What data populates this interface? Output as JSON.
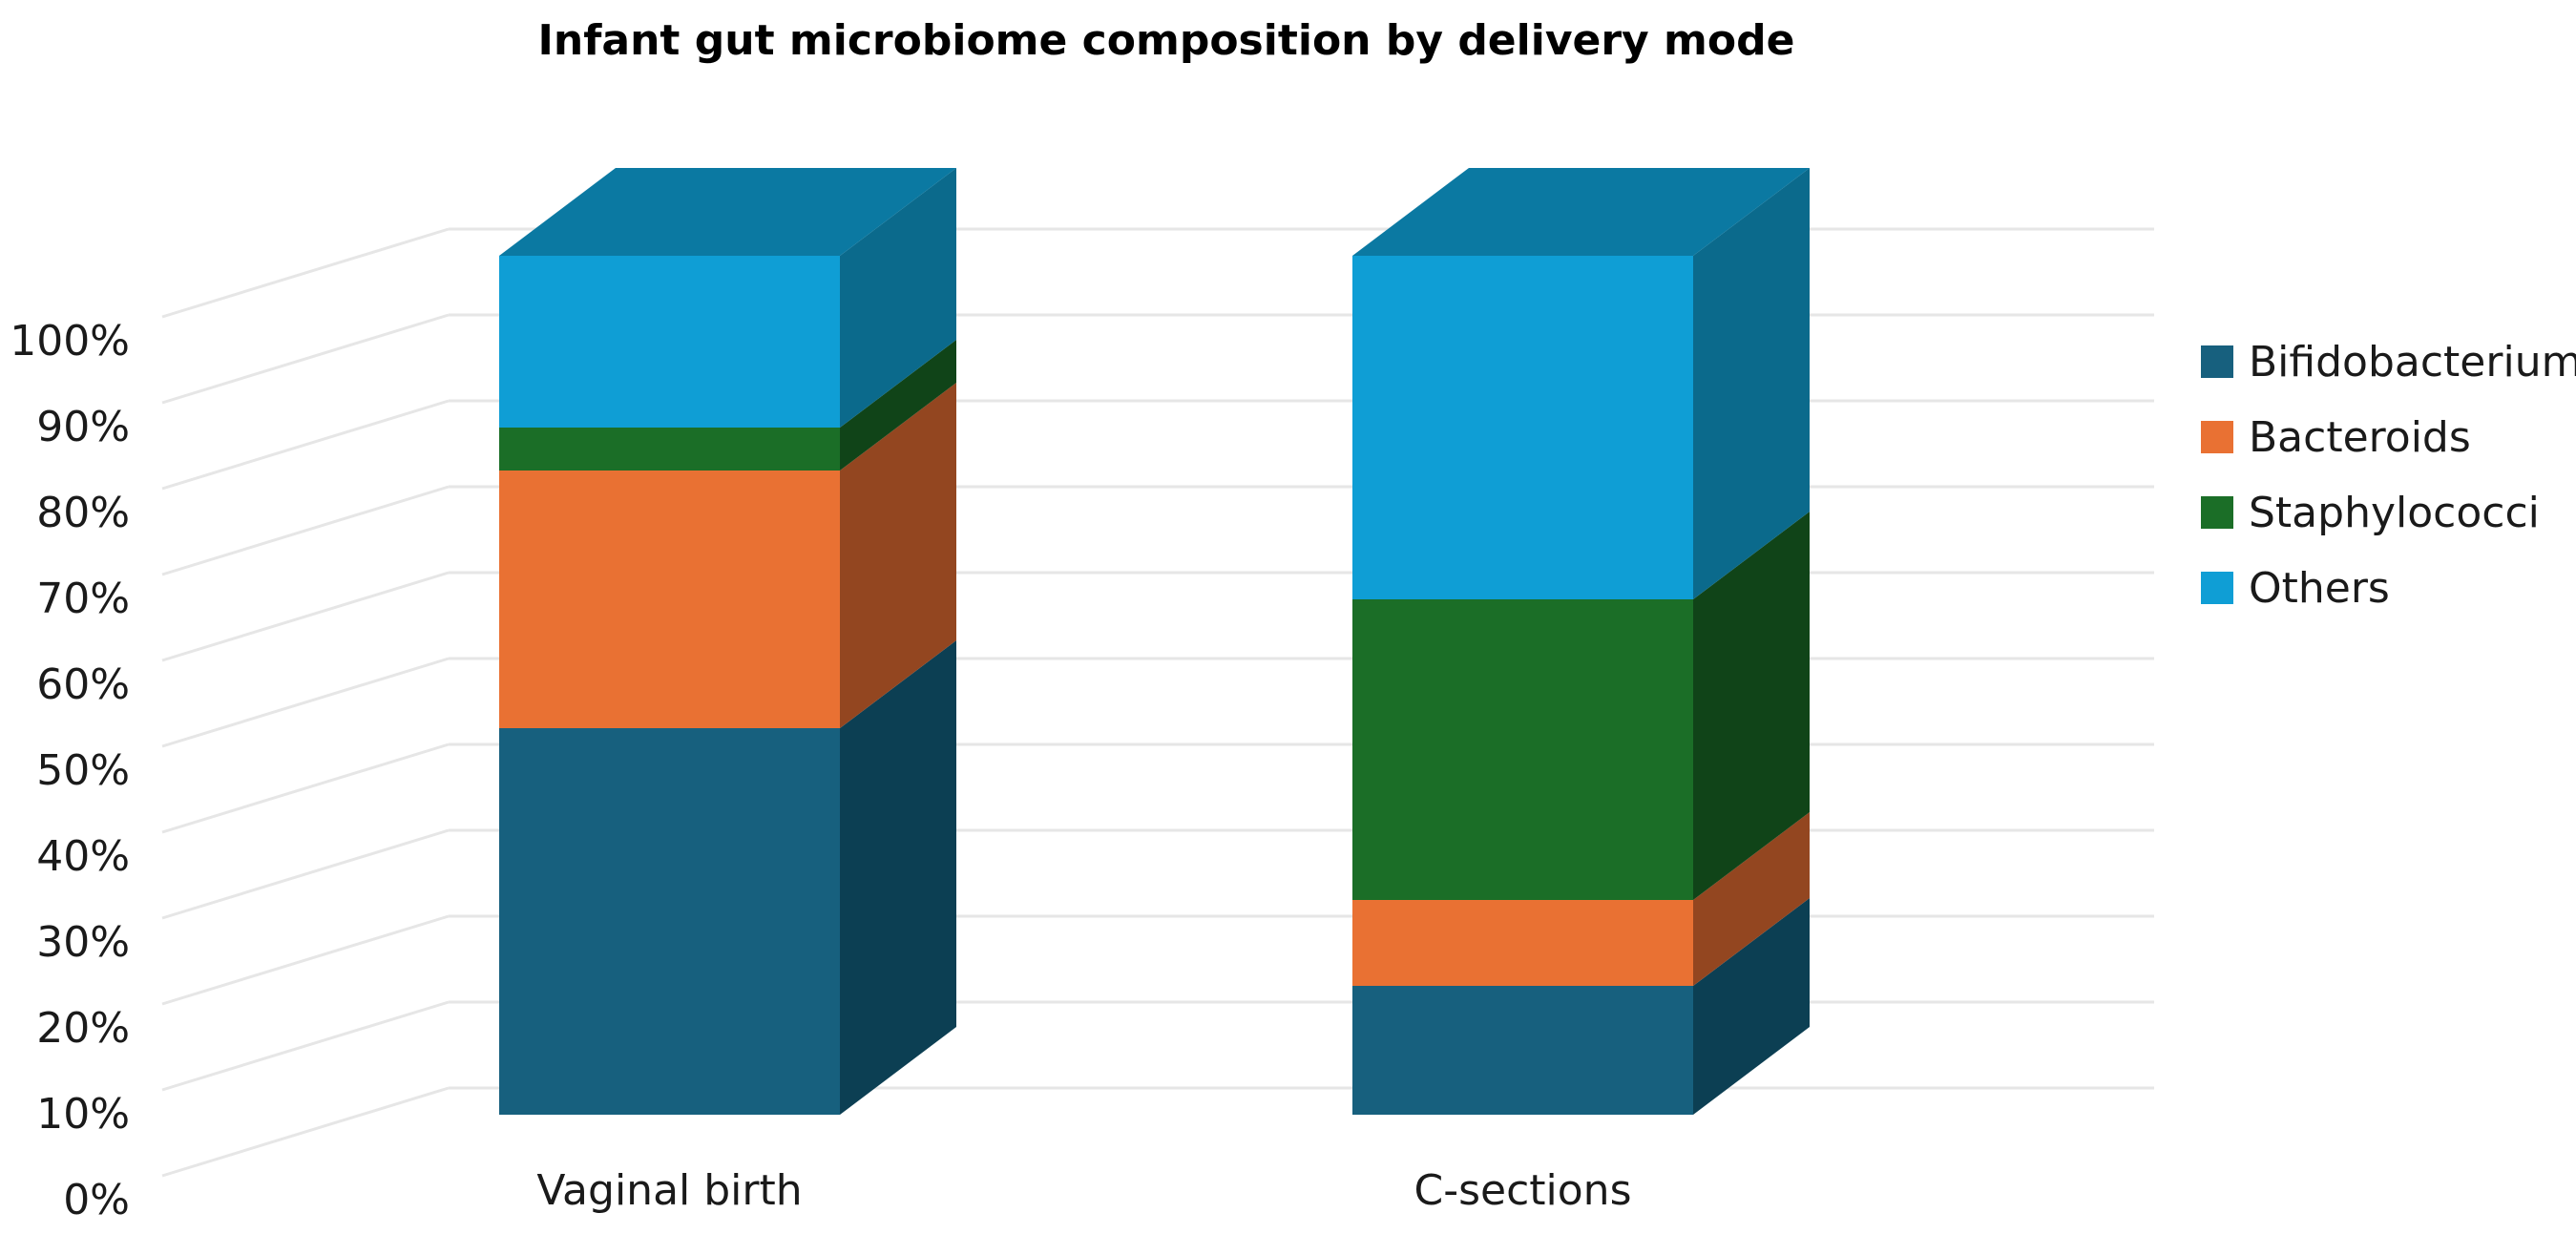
{
  "chart_data": {
    "type": "bar",
    "stacked": true,
    "three_d": true,
    "title": "Infant gut microbiome composition by delivery mode",
    "categories": [
      "Vaginal birth",
      "C-sections"
    ],
    "series": [
      {
        "name": "Bifidobacterium",
        "values": [
          45,
          15
        ],
        "color": "#17607e",
        "side_color": "#0c3f53"
      },
      {
        "name": "Bacteroids",
        "values": [
          30,
          10
        ],
        "color": "#e97133",
        "side_color": "#934620"
      },
      {
        "name": "Staphylococci",
        "values": [
          5,
          35
        ],
        "color": "#1b6e27",
        "side_color": "#104418"
      },
      {
        "name": "Others",
        "values": [
          20,
          40
        ],
        "color": "#0f9ed5",
        "side_color": "#0b6a8c"
      }
    ],
    "y_ticks": [
      "0%",
      "10%",
      "20%",
      "30%",
      "40%",
      "50%",
      "60%",
      "70%",
      "80%",
      "90%",
      "100%"
    ],
    "ylim": [
      0,
      100
    ],
    "grid": true,
    "legend_position": "right"
  }
}
